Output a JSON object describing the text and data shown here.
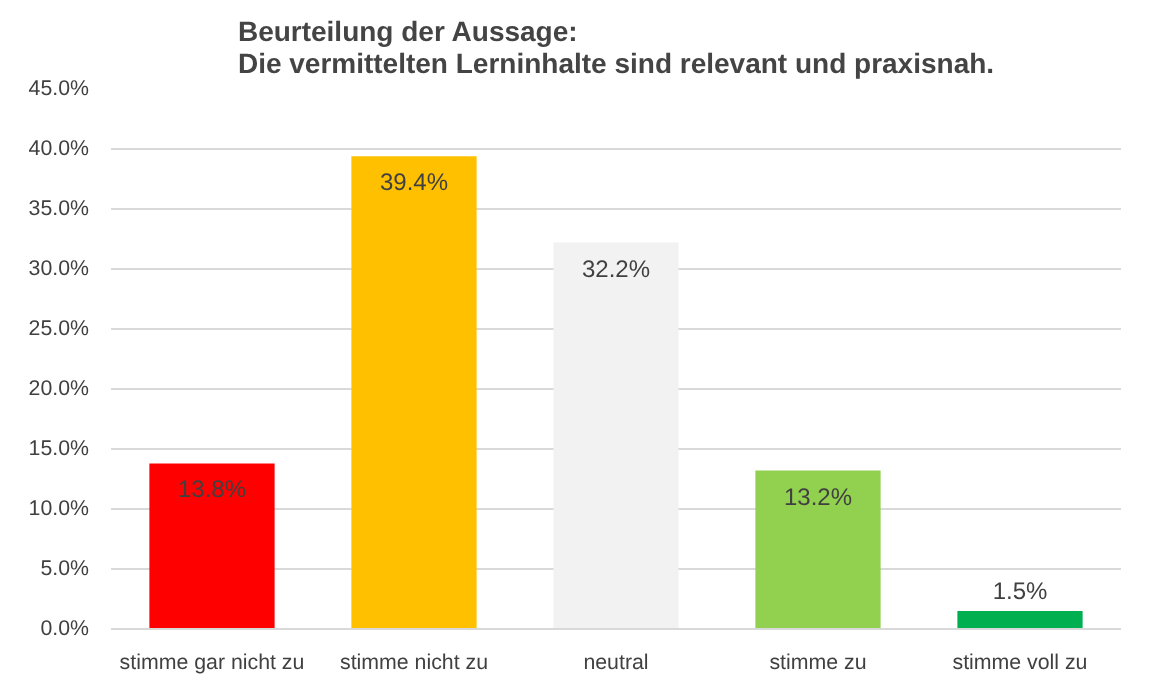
{
  "chart_data": {
    "type": "bar",
    "title": "Beurteilung der Aussage:\nDie vermittelten Lerninhalte sind relevant und praxisnah.",
    "categories": [
      "stimme gar nicht zu",
      "stimme nicht zu",
      "neutral",
      "stimme zu",
      "stimme voll zu"
    ],
    "values": [
      13.8,
      39.4,
      32.2,
      13.2,
      1.5
    ],
    "colors": [
      "#ff0000",
      "#ffc000",
      "#f2f2f2",
      "#92d050",
      "#00b050"
    ],
    "value_labels": [
      "13.8%",
      "39.4%",
      "32.2%",
      "13.2%",
      "1.5%"
    ],
    "ylim": [
      0,
      45
    ],
    "yticks": [
      {
        "value": 0,
        "label": "0.0%"
      },
      {
        "value": 5,
        "label": "5.0%"
      },
      {
        "value": 10,
        "label": "10.0%"
      },
      {
        "value": 15,
        "label": "15.0%"
      },
      {
        "value": 20,
        "label": "20.0%"
      },
      {
        "value": 25,
        "label": "25.0%"
      },
      {
        "value": 30,
        "label": "30.0%"
      },
      {
        "value": 35,
        "label": "35.0%"
      },
      {
        "value": 40,
        "label": "40.0%"
      },
      {
        "value": 45,
        "label": "45.0%"
      }
    ],
    "grid": "y"
  }
}
